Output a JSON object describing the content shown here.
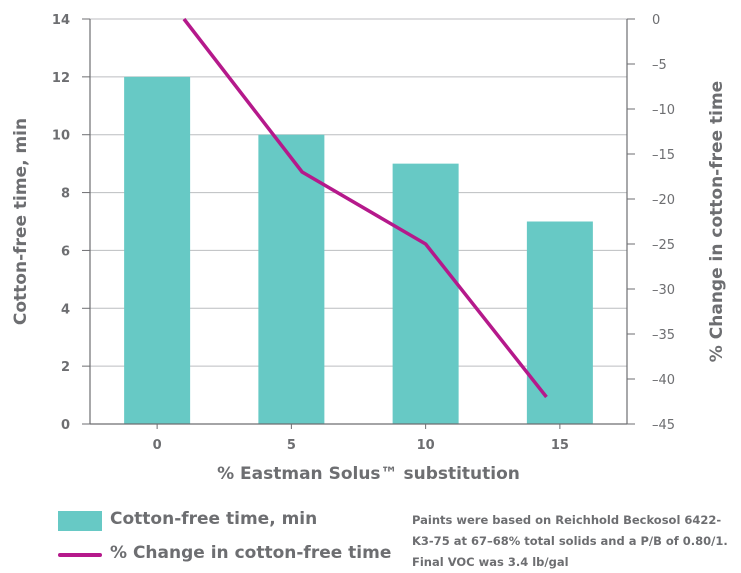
{
  "chart_data": {
    "type": "bar+line",
    "categories": [
      "0",
      "5",
      "10",
      "15"
    ],
    "series": [
      {
        "name": "Cotton-free time, min",
        "type": "bar",
        "axis": "left",
        "values": [
          12,
          10,
          9,
          7
        ]
      },
      {
        "name": "% Change in cotton-free time",
        "type": "line",
        "axis": "right",
        "values": [
          0,
          -17,
          -25,
          -42
        ]
      }
    ],
    "xlabel": "% Eastman Solus™ substitution",
    "ylabel": "Cotton-free time, min",
    "y2label": "% Change in cotton-free time",
    "ylim": [
      0,
      14
    ],
    "y2lim": [
      -45,
      0
    ],
    "yticks": [
      "0",
      "2",
      "4",
      "6",
      "8",
      "10",
      "12",
      "14"
    ],
    "y2ticks": [
      "0",
      "–5",
      "–10",
      "–15",
      "–20",
      "–25",
      "–30",
      "–35",
      "–40",
      "–45"
    ],
    "grid": true,
    "legend_position": "bottom-left",
    "colors": {
      "bar": "#67c9c5",
      "line": "#b5198b",
      "axis": "#6d6e71"
    }
  },
  "legend": {
    "bar_label": "Cotton-free time, min",
    "line_label": "% Change in cotton-free time"
  },
  "note": "Paints were based on Reichhold Beckosol 6422-K3-75 at 67–68% total solids and a P/B of 0.80/1. Final VOC was 3.4 lb/gal"
}
